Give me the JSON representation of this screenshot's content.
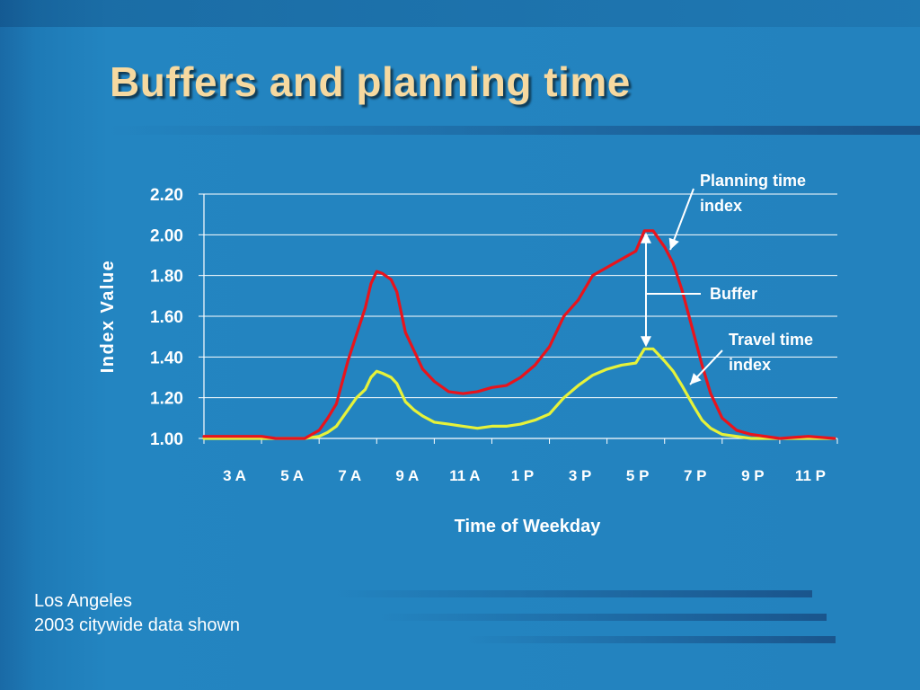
{
  "slide": {
    "title": "Buffers and planning time",
    "footer_line1": "Los Angeles",
    "footer_line2": "2003 citywide data shown"
  },
  "colors": {
    "background": "#2382be",
    "title": "#f6d9a0",
    "planning_series": "#e8141c",
    "travel_series": "#e6f23a",
    "text": "#ffffff"
  },
  "chart_data": {
    "type": "line",
    "xlabel": "Time of Weekday",
    "ylabel": "Index Value",
    "ylim": [
      1.0,
      2.2
    ],
    "yticks": [
      "1.00",
      "1.20",
      "1.40",
      "1.60",
      "1.80",
      "2.00",
      "2.20"
    ],
    "xticks": [
      "3 A",
      "5 A",
      "7 A",
      "9 A",
      "11 A",
      "1 P",
      "3 P",
      "5 P",
      "7 P",
      "9 P",
      "11 P"
    ],
    "grid": true,
    "x_hours": [
      2.0,
      3.0,
      4.0,
      4.5,
      5.0,
      5.5,
      6.0,
      6.3,
      6.6,
      7.0,
      7.3,
      7.6,
      7.8,
      8.0,
      8.2,
      8.5,
      8.7,
      9.0,
      9.3,
      9.6,
      10.0,
      10.5,
      11.0,
      11.5,
      12.0,
      12.5,
      13.0,
      13.5,
      14.0,
      14.5,
      15.0,
      15.5,
      16.0,
      16.5,
      17.0,
      17.3,
      17.6,
      18.0,
      18.3,
      18.6,
      19.0,
      19.3,
      19.6,
      20.0,
      20.5,
      21.0,
      22.0,
      23.0,
      23.9
    ],
    "series": [
      {
        "name": "Planning time index",
        "values": [
          1.01,
          1.01,
          1.01,
          1.0,
          1.0,
          1.0,
          1.04,
          1.1,
          1.17,
          1.38,
          1.51,
          1.64,
          1.76,
          1.82,
          1.81,
          1.78,
          1.72,
          1.52,
          1.43,
          1.34,
          1.28,
          1.23,
          1.22,
          1.23,
          1.25,
          1.26,
          1.3,
          1.36,
          1.45,
          1.6,
          1.68,
          1.8,
          1.84,
          1.88,
          1.92,
          2.02,
          2.02,
          1.94,
          1.86,
          1.73,
          1.52,
          1.36,
          1.22,
          1.1,
          1.04,
          1.02,
          1.0,
          1.01,
          1.0
        ]
      },
      {
        "name": "Travel time index",
        "values": [
          1.0,
          1.0,
          1.0,
          1.0,
          1.0,
          1.0,
          1.01,
          1.03,
          1.06,
          1.14,
          1.2,
          1.24,
          1.3,
          1.33,
          1.32,
          1.3,
          1.27,
          1.18,
          1.14,
          1.11,
          1.08,
          1.07,
          1.06,
          1.05,
          1.06,
          1.06,
          1.07,
          1.09,
          1.12,
          1.2,
          1.26,
          1.31,
          1.34,
          1.36,
          1.37,
          1.44,
          1.44,
          1.38,
          1.33,
          1.26,
          1.16,
          1.09,
          1.05,
          1.02,
          1.01,
          1.0,
          1.0,
          1.0,
          1.0
        ]
      }
    ],
    "annotations": [
      {
        "id": "planning",
        "text_line1": "Planning time",
        "text_line2": "index"
      },
      {
        "id": "buffer",
        "text_line1": "Buffer"
      },
      {
        "id": "travel",
        "text_line1": "Travel time",
        "text_line2": "index"
      }
    ]
  }
}
